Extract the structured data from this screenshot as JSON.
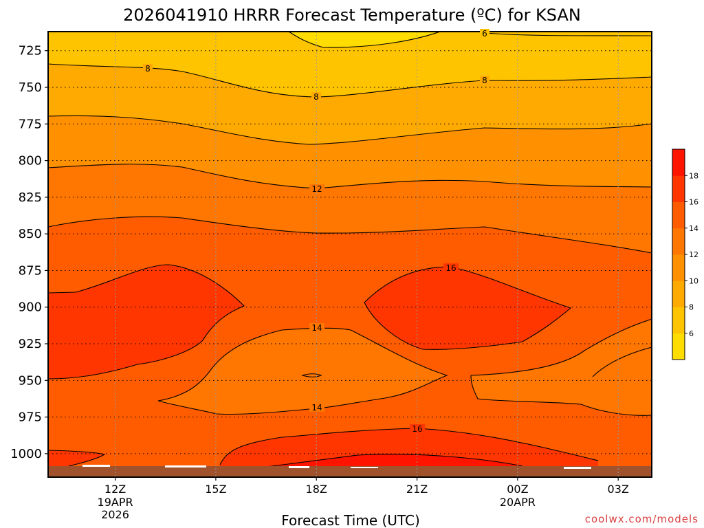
{
  "chart_data": {
    "type": "heatmap",
    "title": "2026041910 HRRR Forecast Temperature (ºC) for KSAN",
    "xlabel": "Forecast Time (UTC)",
    "ylabel": "",
    "y_ticks": [
      "725",
      "750",
      "775",
      "800",
      "825",
      "850",
      "875",
      "900",
      "925",
      "950",
      "975",
      "1000"
    ],
    "y_values": [
      725,
      750,
      775,
      800,
      825,
      850,
      875,
      900,
      925,
      950,
      975,
      1000
    ],
    "ylim": [
      712,
      1016
    ],
    "x_ticks": [
      {
        "label": "12Z",
        "sub1": "19APR",
        "sub2": "2026"
      },
      {
        "label": "15Z",
        "sub1": "",
        "sub2": ""
      },
      {
        "label": "18Z",
        "sub1": "",
        "sub2": ""
      },
      {
        "label": "21Z",
        "sub1": "",
        "sub2": ""
      },
      {
        "label": "00Z",
        "sub1": "20APR",
        "sub2": ""
      },
      {
        "label": "03Z",
        "sub1": "",
        "sub2": ""
      }
    ],
    "x_hours": [
      12,
      15,
      18,
      21,
      24,
      27
    ],
    "xlim": [
      10,
      28
    ],
    "colorbar_ticks": [
      "6",
      "8",
      "10",
      "12",
      "14",
      "16",
      "18"
    ],
    "colorbar_colors": [
      "#ffdd00",
      "#ffc400",
      "#ffaa00",
      "#ff9000",
      "#ff7600",
      "#ff5c00",
      "#ff3600",
      "#ff1400"
    ],
    "contour_labels": [
      "6",
      "8",
      "8",
      "8",
      "12",
      "16",
      "14",
      "14",
      "16"
    ],
    "grid": true,
    "credit": "coolwx.com/models"
  }
}
